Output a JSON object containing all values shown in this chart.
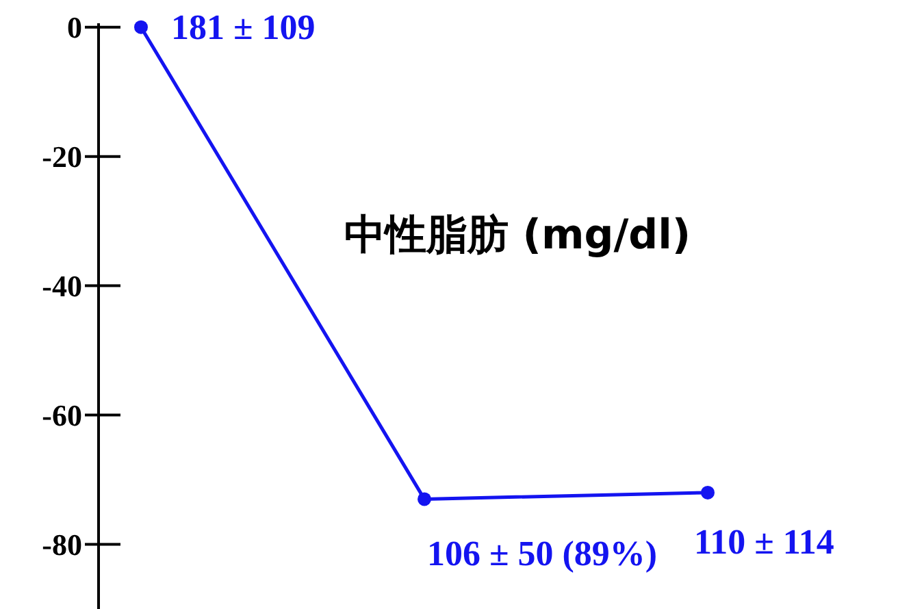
{
  "chart_data": {
    "type": "line",
    "title": "中性脂肪 (mg/dl)",
    "categories": [
      null,
      null,
      null
    ],
    "series": [
      {
        "color": "#1414f0",
        "values": [
          0,
          -73,
          -72
        ]
      }
    ],
    "annotations": [
      "181 ± 109",
      "106 ± 50 (89%)",
      "110 ± 114"
    ],
    "ylim": [
      -90,
      0.6
    ],
    "yticks": [
      0,
      -20,
      -40,
      -60,
      -80
    ],
    "marker": "circle"
  }
}
